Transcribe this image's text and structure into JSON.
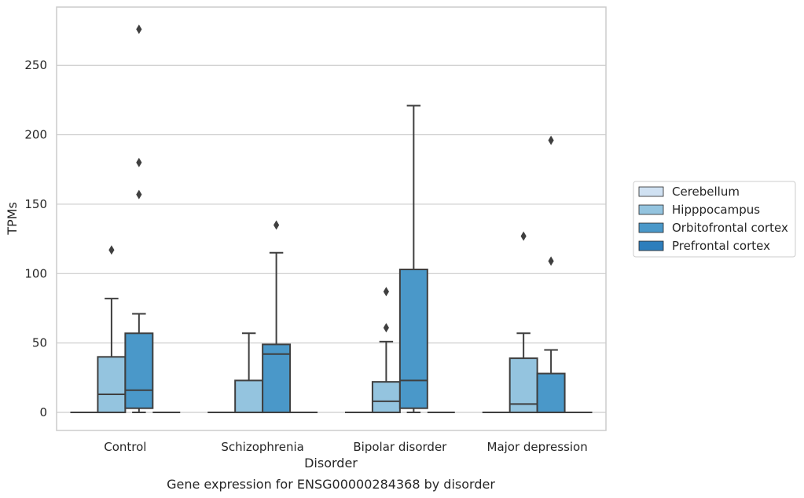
{
  "chart_data": {
    "type": "box",
    "title": "",
    "caption": "Gene expression for ENSG00000284368 by disorder",
    "xlabel": "Disorder",
    "ylabel": "TPMs",
    "ylim": [
      -13,
      292
    ],
    "yticks": [
      0,
      50,
      100,
      150,
      200,
      250
    ],
    "grid": "horizontal",
    "legend_position": "right",
    "categories": [
      "Control",
      "Schizophrenia",
      "Bipolar disorder",
      "Major depression"
    ],
    "series": [
      {
        "name": "Cerebellum",
        "color": "#d0e1f2",
        "boxes": [
          {
            "min": 0,
            "q1": 0,
            "median": 0,
            "q3": 0,
            "max": 0,
            "outliers": []
          },
          {
            "min": 0,
            "q1": 0,
            "median": 0,
            "q3": 0,
            "max": 0,
            "outliers": []
          },
          {
            "min": 0,
            "q1": 0,
            "median": 0,
            "q3": 0,
            "max": 0,
            "outliers": []
          },
          {
            "min": 0,
            "q1": 0,
            "median": 0,
            "q3": 0,
            "max": 0,
            "outliers": []
          }
        ]
      },
      {
        "name": "Hipppocampus",
        "color": "#94c4df",
        "boxes": [
          {
            "min": 0,
            "q1": 0,
            "median": 13,
            "q3": 40,
            "max": 82,
            "outliers": [
              117
            ]
          },
          {
            "min": 0,
            "q1": 0,
            "median": 0,
            "q3": 23,
            "max": 57,
            "outliers": []
          },
          {
            "min": 0,
            "q1": 0,
            "median": 8,
            "q3": 22,
            "max": 51,
            "outliers": [
              61,
              87
            ]
          },
          {
            "min": 0,
            "q1": 0,
            "median": 6,
            "q3": 39,
            "max": 57,
            "outliers": [
              127
            ]
          }
        ]
      },
      {
        "name": "Orbitofrontal cortex",
        "color": "#4a98c9",
        "boxes": [
          {
            "min": 0,
            "q1": 3,
            "median": 16,
            "q3": 57,
            "max": 71,
            "outliers": [
              157,
              180,
              276
            ]
          },
          {
            "min": 0,
            "q1": 0,
            "median": 42,
            "q3": 49,
            "max": 115,
            "outliers": [
              135
            ]
          },
          {
            "min": 0,
            "q1": 3,
            "median": 23,
            "q3": 103,
            "max": 221,
            "outliers": []
          },
          {
            "min": 0,
            "q1": 0,
            "median": 0,
            "q3": 28,
            "max": 45,
            "outliers": [
              109,
              196
            ]
          }
        ]
      },
      {
        "name": "Prefrontal cortex",
        "color": "#2e7ebc",
        "boxes": [
          {
            "min": 0,
            "q1": 0,
            "median": 0,
            "q3": 0,
            "max": 0,
            "outliers": []
          },
          {
            "min": 0,
            "q1": 0,
            "median": 0,
            "q3": 0,
            "max": 0,
            "outliers": []
          },
          {
            "min": 0,
            "q1": 0,
            "median": 0,
            "q3": 0,
            "max": 0,
            "outliers": []
          },
          {
            "min": 0,
            "q1": 0,
            "median": 0,
            "q3": 0,
            "max": 0,
            "outliers": []
          }
        ]
      }
    ]
  }
}
